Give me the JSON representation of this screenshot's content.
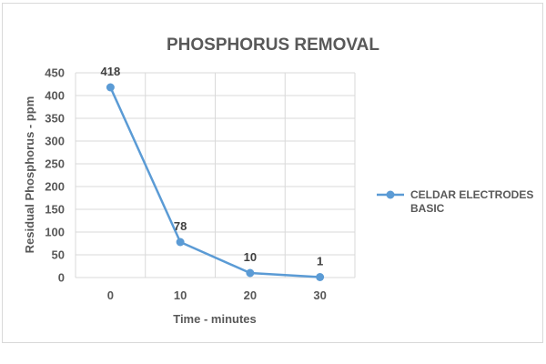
{
  "chart_data": {
    "type": "line",
    "title": "PHOSPHORUS REMOVAL",
    "xlabel": "Time - minutes",
    "ylabel": "Residual Phosphorus  - ppm",
    "categories": [
      "0",
      "10",
      "20",
      "30"
    ],
    "x": [
      0,
      10,
      20,
      30
    ],
    "ylim": [
      0,
      450
    ],
    "yticks": [
      0,
      50,
      100,
      150,
      200,
      250,
      300,
      350,
      400,
      450
    ],
    "grid": true,
    "legend_position": "right",
    "series": [
      {
        "name": "CELDAR ELECTRODES BASIC",
        "legend_lines": [
          "CELDAR ELECTRODES",
          "BASIC"
        ],
        "values": [
          418,
          78,
          10,
          1
        ],
        "data_labels": [
          "418",
          "78",
          "10",
          "1"
        ],
        "color": "#5b9bd5"
      }
    ]
  }
}
